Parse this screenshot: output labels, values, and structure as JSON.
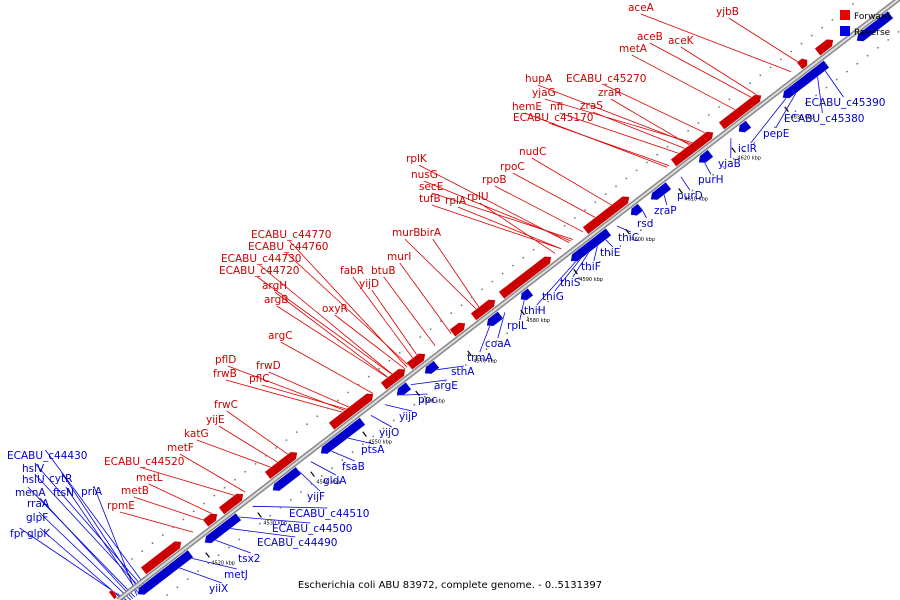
{
  "legend": {
    "forward": {
      "label": "Forward",
      "color": "#ee0000"
    },
    "reverse": {
      "label": "Reverse",
      "color": "#0000ee"
    }
  },
  "caption": "Escherichia coli ABU 83972, complete genome. - 0..5131397",
  "ticks": [
    "4520 kbp",
    "4530 kbp",
    "4540 kbp",
    "4550 kbp",
    "4560 kbp",
    "4570 kbp",
    "4580 kbp",
    "4590 kbp",
    "4600 kbp",
    "4610 kbp",
    "4620 kbp",
    "4630 kbp"
  ],
  "forward_genes": [
    "aceA",
    "yjbB",
    "aceB",
    "aceK",
    "metA",
    "hupA",
    "yjaG",
    "ECABU_c45270",
    "nfi",
    "zraS",
    "zraR",
    "hemE",
    "ECABU_c45170",
    "nudC",
    "rpoC",
    "rplK",
    "nusG",
    "rpoB",
    "secE",
    "rplU",
    "tufB",
    "rplA",
    "ECABU_c44770",
    "ECABU_c44760",
    "murB",
    "birA",
    "ECABU_c44730",
    "fabR",
    "murI",
    "ECABU_c44720",
    "yijD",
    "btuB",
    "argH",
    "argB",
    "oxyR",
    "argC",
    "pflD",
    "frwD",
    "frwB",
    "pflC",
    "frwC",
    "katG",
    "yijE",
    "metF",
    "ECABU_c44520",
    "metL",
    "metB",
    "rpmE"
  ],
  "reverse_genes": [
    "ECABU_c45390",
    "ECABU_c45380",
    "iclR",
    "pepE",
    "yjaB",
    "purH",
    "purD",
    "zraP",
    "rsd",
    "thiC",
    "thiE",
    "thiF",
    "thiS",
    "thiG",
    "thiH",
    "rplL",
    "coaA",
    "trmA",
    "sthA",
    "argE",
    "ppc",
    "yijP",
    "yijO",
    "ptsA",
    "fsaB",
    "gldA",
    "yijF",
    "ECABU_c44510",
    "ECABU_c44500",
    "ECABU_c44490",
    "tsx2",
    "metJ",
    "yiiX",
    "ECABU_c44430",
    "hslV",
    "hslU",
    "cytR",
    "ftsN",
    "priA",
    "menA",
    "rraA",
    "glpF",
    "fpr",
    "glpK"
  ]
}
